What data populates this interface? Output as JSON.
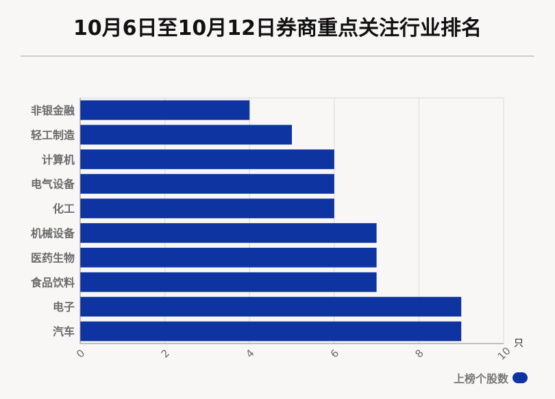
{
  "title": "10月6日至10月12日券商重点关注行业排名",
  "colors": {
    "bar": "#0d34a0",
    "grid": "#d9d9d9",
    "axis": "#888888"
  },
  "chart_data": {
    "type": "bar",
    "orientation": "horizontal",
    "categories": [
      "非银金融",
      "轻工制造",
      "计算机",
      "电气设备",
      "化工",
      "机械设备",
      "医药生物",
      "食品饮料",
      "电子",
      "汽车"
    ],
    "series": [
      {
        "name": "上榜个股数",
        "values": [
          4,
          5,
          6,
          6,
          6,
          7,
          7,
          7,
          9,
          9
        ]
      }
    ],
    "xlim": [
      0,
      10
    ],
    "xticks": [
      0,
      2,
      4,
      6,
      8,
      10
    ],
    "xunit": "只",
    "grid": true,
    "legend_position": "bottom-right"
  }
}
